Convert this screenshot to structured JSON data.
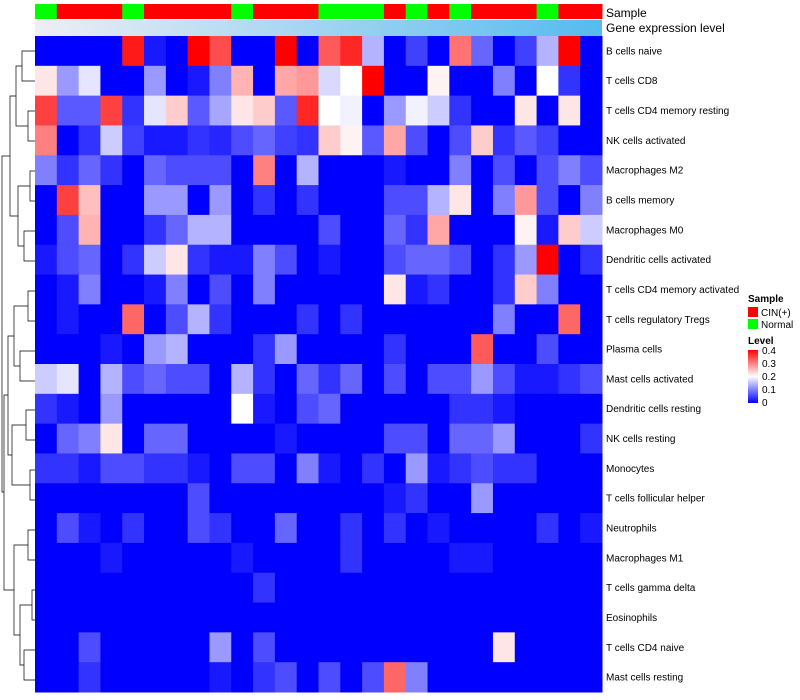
{
  "chart_data": {
    "type": "heatmap",
    "rows": [
      "B cells naive",
      "T cells CD8",
      "T cells CD4 memory resting",
      "NK cells activated",
      "Macrophages M2",
      "B cells memory",
      "Macrophages M0",
      "Dendritic cells activated",
      "T cells CD4 memory activated",
      "T cells regulatory  Tregs",
      "Plasma cells",
      "Mast cells activated",
      "Dendritic cells resting",
      "NK cells resting",
      "Monocytes",
      "T cells follicular helper",
      "Neutrophils",
      "Macrophages M1",
      "T cells gamma delta",
      "Eosinophils",
      "T cells CD4 naive",
      "Mast cells resting"
    ],
    "sample_groups": [
      "N",
      "C",
      "C",
      "C",
      "N",
      "C",
      "C",
      "C",
      "C",
      "N",
      "C",
      "C",
      "C",
      "N",
      "N",
      "N",
      "C",
      "N",
      "C",
      "N",
      "C",
      "C",
      "C",
      "N",
      "C",
      "C"
    ],
    "values": [
      [
        0.0,
        0.0,
        0.0,
        0.0,
        0.38,
        0.02,
        0.0,
        0.4,
        0.34,
        0.0,
        0.0,
        0.4,
        0.0,
        0.33,
        0.37,
        0.14,
        0.0,
        0.05,
        0.0,
        0.31,
        0.08,
        0.0,
        0.05,
        0.14,
        0.4,
        0.0
      ],
      [
        0.22,
        0.12,
        0.18,
        0.0,
        0.0,
        0.12,
        0.0,
        0.02,
        0.1,
        0.26,
        0.0,
        0.27,
        0.28,
        0.17,
        0.2,
        0.4,
        0.0,
        0.0,
        0.21,
        0.0,
        0.0,
        0.1,
        0.0,
        0.2,
        0.04,
        0.0
      ],
      [
        0.35,
        0.07,
        0.07,
        0.35,
        0.04,
        0.18,
        0.24,
        0.07,
        0.13,
        0.22,
        0.24,
        0.07,
        0.37,
        0.2,
        0.19,
        0.0,
        0.12,
        0.19,
        0.16,
        0.04,
        0.0,
        0.0,
        0.22,
        0.0,
        0.22,
        0.0
      ],
      [
        0.3,
        0.0,
        0.04,
        0.16,
        0.05,
        0.02,
        0.02,
        0.04,
        0.03,
        0.06,
        0.08,
        0.05,
        0.04,
        0.24,
        0.21,
        0.07,
        0.27,
        0.06,
        0.0,
        0.06,
        0.24,
        0.04,
        0.07,
        0.05,
        0.0,
        0.0
      ],
      [
        0.1,
        0.04,
        0.08,
        0.04,
        0.0,
        0.08,
        0.06,
        0.06,
        0.06,
        0.0,
        0.3,
        0.0,
        0.14,
        0.0,
        0.0,
        0.0,
        0.02,
        0.0,
        0.0,
        0.1,
        0.0,
        0.06,
        0.0,
        0.06,
        0.1,
        0.06
      ],
      [
        0.0,
        0.35,
        0.25,
        0.0,
        0.0,
        0.12,
        0.12,
        0.0,
        0.12,
        0.0,
        0.04,
        0.0,
        0.04,
        0.0,
        0.0,
        0.0,
        0.06,
        0.06,
        0.14,
        0.22,
        0.0,
        0.1,
        0.28,
        0.06,
        0.0,
        0.1
      ],
      [
        0.0,
        0.06,
        0.26,
        0.0,
        0.0,
        0.04,
        0.08,
        0.14,
        0.14,
        0.0,
        0.0,
        0.0,
        0.0,
        0.06,
        0.0,
        0.0,
        0.08,
        0.04,
        0.27,
        0.0,
        0.0,
        0.0,
        0.21,
        0.02,
        0.24,
        0.16
      ],
      [
        0.02,
        0.06,
        0.08,
        0.0,
        0.04,
        0.16,
        0.22,
        0.04,
        0.02,
        0.02,
        0.1,
        0.06,
        0.0,
        0.02,
        0.0,
        0.0,
        0.06,
        0.08,
        0.08,
        0.06,
        0.0,
        0.04,
        0.12,
        0.4,
        0.0,
        0.04
      ],
      [
        0.0,
        0.02,
        0.1,
        0.0,
        0.0,
        0.02,
        0.1,
        0.0,
        0.06,
        0.0,
        0.1,
        0.0,
        0.0,
        0.0,
        0.0,
        0.0,
        0.22,
        0.02,
        0.04,
        0.0,
        0.0,
        0.04,
        0.24,
        0.1,
        0.0,
        0.0
      ],
      [
        0.0,
        0.02,
        0.0,
        0.0,
        0.32,
        0.0,
        0.06,
        0.14,
        0.04,
        0.0,
        0.0,
        0.0,
        0.04,
        0.0,
        0.04,
        0.0,
        0.0,
        0.0,
        0.0,
        0.0,
        0.0,
        0.1,
        0.0,
        0.0,
        0.32,
        0.0
      ],
      [
        0.0,
        0.0,
        0.0,
        0.02,
        0.0,
        0.12,
        0.14,
        0.0,
        0.0,
        0.0,
        0.04,
        0.12,
        0.0,
        0.0,
        0.0,
        0.0,
        0.04,
        0.0,
        0.0,
        0.0,
        0.33,
        0.0,
        0.0,
        0.06,
        0.0,
        0.0
      ],
      [
        0.16,
        0.18,
        0.0,
        0.14,
        0.06,
        0.08,
        0.06,
        0.06,
        0.0,
        0.14,
        0.04,
        0.0,
        0.08,
        0.04,
        0.08,
        0.0,
        0.06,
        0.0,
        0.06,
        0.06,
        0.12,
        0.06,
        0.02,
        0.02,
        0.04,
        0.06
      ],
      [
        0.04,
        0.02,
        0.0,
        0.12,
        0.0,
        0.0,
        0.0,
        0.0,
        0.0,
        0.2,
        0.02,
        0.0,
        0.06,
        0.08,
        0.0,
        0.0,
        0.0,
        0.0,
        0.0,
        0.04,
        0.04,
        0.02,
        0.0,
        0.0,
        0.0,
        0.0
      ],
      [
        0.0,
        0.08,
        0.1,
        0.22,
        0.0,
        0.08,
        0.08,
        0.0,
        0.0,
        0.0,
        0.0,
        0.02,
        0.0,
        0.0,
        0.0,
        0.0,
        0.06,
        0.06,
        0.0,
        0.08,
        0.08,
        0.12,
        0.0,
        0.0,
        0.0,
        0.04
      ],
      [
        0.04,
        0.04,
        0.02,
        0.06,
        0.06,
        0.04,
        0.04,
        0.02,
        0.0,
        0.06,
        0.06,
        0.0,
        0.1,
        0.02,
        0.0,
        0.04,
        0.0,
        0.12,
        0.02,
        0.04,
        0.06,
        0.04,
        0.04,
        0.0,
        0.0,
        0.0
      ],
      [
        0.0,
        0.0,
        0.0,
        0.0,
        0.0,
        0.0,
        0.0,
        0.06,
        0.0,
        0.0,
        0.0,
        0.0,
        0.0,
        0.0,
        0.0,
        0.0,
        0.02,
        0.04,
        0.0,
        0.0,
        0.12,
        0.0,
        0.0,
        0.0,
        0.0,
        0.0
      ],
      [
        0.0,
        0.06,
        0.02,
        0.0,
        0.04,
        0.0,
        0.0,
        0.06,
        0.04,
        0.0,
        0.0,
        0.08,
        0.0,
        0.0,
        0.04,
        0.0,
        0.04,
        0.0,
        0.02,
        0.0,
        0.0,
        0.0,
        0.0,
        0.04,
        0.0,
        0.02
      ],
      [
        0.0,
        0.0,
        0.0,
        0.02,
        0.0,
        0.0,
        0.0,
        0.0,
        0.0,
        0.02,
        0.0,
        0.0,
        0.0,
        0.0,
        0.04,
        0.0,
        0.0,
        0.0,
        0.0,
        0.02,
        0.02,
        0.0,
        0.0,
        0.0,
        0.0,
        0.0
      ],
      [
        0.0,
        0.0,
        0.0,
        0.0,
        0.0,
        0.0,
        0.0,
        0.0,
        0.0,
        0.0,
        0.04,
        0.0,
        0.0,
        0.0,
        0.0,
        0.0,
        0.0,
        0.0,
        0.0,
        0.0,
        0.0,
        0.0,
        0.0,
        0.0,
        0.0,
        0.0
      ],
      [
        0.0,
        0.0,
        0.0,
        0.0,
        0.0,
        0.0,
        0.0,
        0.0,
        0.0,
        0.0,
        0.0,
        0.0,
        0.0,
        0.0,
        0.0,
        0.0,
        0.0,
        0.0,
        0.0,
        0.0,
        0.0,
        0.0,
        0.0,
        0.0,
        0.0,
        0.0
      ],
      [
        0.0,
        0.0,
        0.06,
        0.0,
        0.0,
        0.0,
        0.0,
        0.0,
        0.12,
        0.0,
        0.06,
        0.0,
        0.0,
        0.0,
        0.0,
        0.0,
        0.0,
        0.0,
        0.0,
        0.0,
        0.0,
        0.22,
        0.0,
        0.0,
        0.0,
        0.0
      ],
      [
        0.0,
        0.0,
        0.04,
        0.0,
        0.0,
        0.0,
        0.0,
        0.0,
        0.02,
        0.0,
        0.04,
        0.06,
        0.0,
        0.06,
        0.0,
        0.06,
        0.32,
        0.1,
        0.0,
        0.0,
        0.0,
        0.0,
        0.0,
        0.0,
        0.0,
        0.0
      ]
    ],
    "range": [
      0,
      0.4
    ],
    "color_stops": [
      "#0000ff",
      "#ffffff",
      "#ff0000"
    ],
    "group_colors": {
      "C": "#ff0000",
      "N": "#00ff00"
    },
    "annotation_labels": {
      "sample": "Sample",
      "gene": "Gene expression level"
    },
    "gene_bar_gradient": [
      "#eeeef4",
      "#55bbee"
    ],
    "legend": {
      "sample_title": "Sample",
      "sample_entries": [
        {
          "label": "CIN(+)",
          "color": "#ff0000"
        },
        {
          "label": "Normal",
          "color": "#00ff00"
        }
      ],
      "level_title": "Level",
      "level_ticks": [
        "0.4",
        "0.3",
        "0.2",
        "0.1",
        "0"
      ],
      "position": "right"
    },
    "dendrogram": "row clustering tree on left"
  }
}
